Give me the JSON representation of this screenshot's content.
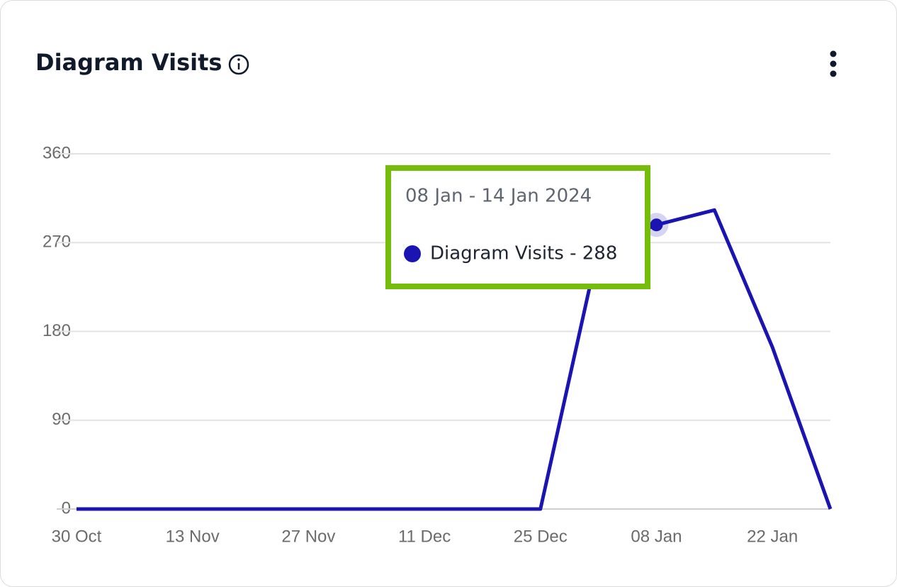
{
  "chart_data": {
    "type": "line",
    "title": "Diagram Visits",
    "categories": [
      "30 Oct",
      null,
      "13 Nov",
      null,
      "27 Nov",
      null,
      "11 Dec",
      null,
      "25 Dec",
      null,
      "08 Jan",
      null,
      "22 Jan",
      null
    ],
    "series": [
      {
        "name": "Diagram Visits",
        "color": "#1c14b0",
        "values": [
          0,
          0,
          0,
          0,
          0,
          0,
          0,
          0,
          0,
          265,
          288,
          303,
          164,
          0
        ]
      }
    ],
    "ylim": [
      0,
      360
    ],
    "yticks": [
      0,
      90,
      180,
      270,
      360
    ],
    "grid": true,
    "tooltip": {
      "index": 10,
      "title": "08 Jan - 14 Jan 2024",
      "label": "Diagram Visits - 288",
      "border_color": "#76bc0b"
    }
  }
}
